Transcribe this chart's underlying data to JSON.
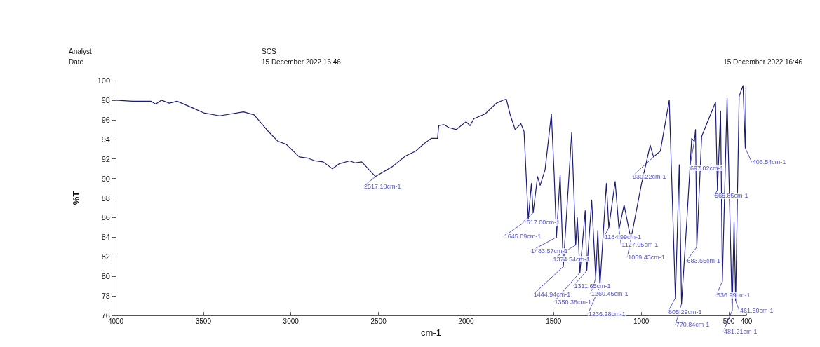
{
  "chart_data": {
    "type": "line",
    "xlabel": "cm-1",
    "ylabel": "%T",
    "xlim": [
      4000,
      400
    ],
    "xticks": [
      4000,
      3500,
      3000,
      2500,
      2000,
      1500,
      1000,
      500,
      400
    ],
    "ylim": [
      76,
      100
    ],
    "yticks": [
      76,
      78,
      80,
      82,
      84,
      86,
      88,
      90,
      92,
      94,
      96,
      98,
      100
    ],
    "grid": false,
    "marker": "none",
    "line_style": "solid",
    "series": [
      {
        "color": "#1c1c78",
        "x": [
          4000,
          3906,
          3800,
          3772,
          3740,
          3694,
          3650,
          3559,
          3498,
          3407,
          3271,
          3210,
          3134,
          3074,
          3027,
          2952,
          2907,
          2862,
          2816,
          2763,
          2725,
          2665,
          2634,
          2596,
          2517,
          2422,
          2346,
          2287,
          2244,
          2199,
          2163,
          2156,
          2127,
          2098,
          2056,
          2000,
          1977,
          1956,
          1891,
          1827,
          1790,
          1770,
          1748,
          1720,
          1687,
          1669,
          1645,
          1627,
          1617,
          1592,
          1577,
          1549,
          1513,
          1497,
          1484,
          1463,
          1445,
          1397,
          1374,
          1365,
          1350,
          1320,
          1311,
          1283,
          1260,
          1248,
          1236,
          1199,
          1185,
          1149,
          1127,
          1098,
          1059,
          998,
          949,
          930,
          891,
          840,
          805,
          783,
          770,
          740,
          712,
          697,
          690,
          683,
          655,
          576,
          565,
          547,
          537,
          510,
          481,
          470,
          461,
          441,
          419,
          406,
          402
        ],
        "values": [
          98.0,
          97.9,
          97.9,
          97.6,
          98.0,
          97.7,
          97.9,
          97.2,
          96.7,
          96.4,
          96.8,
          96.5,
          94.9,
          93.8,
          93.5,
          92.2,
          92.1,
          91.8,
          91.7,
          91.0,
          91.5,
          91.8,
          91.6,
          91.7,
          90.2,
          91.2,
          92.3,
          92.8,
          93.5,
          94.1,
          94.1,
          95.4,
          95.5,
          95.2,
          95.0,
          95.8,
          95.4,
          96.1,
          96.6,
          97.7,
          98.0,
          98.1,
          96.5,
          95.0,
          95.6,
          94.8,
          85.8,
          89.5,
          86.5,
          90.2,
          89.3,
          90.9,
          96.6,
          90.4,
          84.0,
          90.4,
          81.0,
          94.7,
          83.2,
          86.0,
          80.4,
          86.7,
          80.6,
          87.8,
          79.8,
          84.7,
          79.0,
          89.5,
          85.0,
          89.7,
          84.8,
          87.3,
          83.8,
          89.5,
          93.4,
          92.2,
          92.8,
          98.0,
          77.8,
          91.4,
          77.2,
          85.6,
          94.1,
          93.8,
          95.0,
          83.0,
          94.3,
          97.8,
          88.8,
          96.9,
          79.5,
          98.2,
          76.5,
          85.6,
          77.5,
          98.4,
          99.5,
          93.1,
          99.4
        ]
      }
    ],
    "annotations": [
      "Analyst",
      "Date",
      "SCS",
      "15 December 2022 16:46",
      "15 December 2022 16:46",
      {
        "text": "2517.18cm-1",
        "x": 2517,
        "y": 90.2
      },
      {
        "text": "1617.00cm-1",
        "x": 1617,
        "y": 86.5
      },
      {
        "text": "1645.09cm-1",
        "x": 1645,
        "y": 85.8
      },
      {
        "text": "1483.57cm-1",
        "x": 1484,
        "y": 84.0
      },
      {
        "text": "1374.54cm-1",
        "x": 1374,
        "y": 83.2
      },
      {
        "text": "1311.65cm-1",
        "x": 1311,
        "y": 80.6
      },
      {
        "text": "1444.94cm-1",
        "x": 1445,
        "y": 81.0
      },
      {
        "text": "1260.45cm-1",
        "x": 1260,
        "y": 79.8
      },
      {
        "text": "1350.38cm-1",
        "x": 1350,
        "y": 80.4
      },
      {
        "text": "1236.28cm-1",
        "x": 1236,
        "y": 79.0
      },
      {
        "text": "1184.99cm-1",
        "x": 1185,
        "y": 85.0
      },
      {
        "text": "1127.05cm-1",
        "x": 1127,
        "y": 84.8
      },
      {
        "text": "1059.43cm-1",
        "x": 1059,
        "y": 83.8
      },
      {
        "text": "930.22cm-1",
        "x": 930,
        "y": 92.2
      },
      {
        "text": "697.02cm-1",
        "x": 697,
        "y": 93.8
      },
      {
        "text": "565.85cm-1",
        "x": 565,
        "y": 88.8
      },
      {
        "text": "683.65cm-1",
        "x": 683,
        "y": 83.0
      },
      {
        "text": "805.29cm-1",
        "x": 805,
        "y": 77.8
      },
      {
        "text": "770.84cm-1",
        "x": 770,
        "y": 77.2
      },
      {
        "text": "536.99cm-1",
        "x": 537,
        "y": 79.5
      },
      {
        "text": "461.50cm-1",
        "x": 461,
        "y": 77.5
      },
      {
        "text": "481.21cm-1",
        "x": 481,
        "y": 76.5
      },
      {
        "text": "406.54cm-1",
        "x": 406,
        "y": 93.1
      }
    ]
  }
}
